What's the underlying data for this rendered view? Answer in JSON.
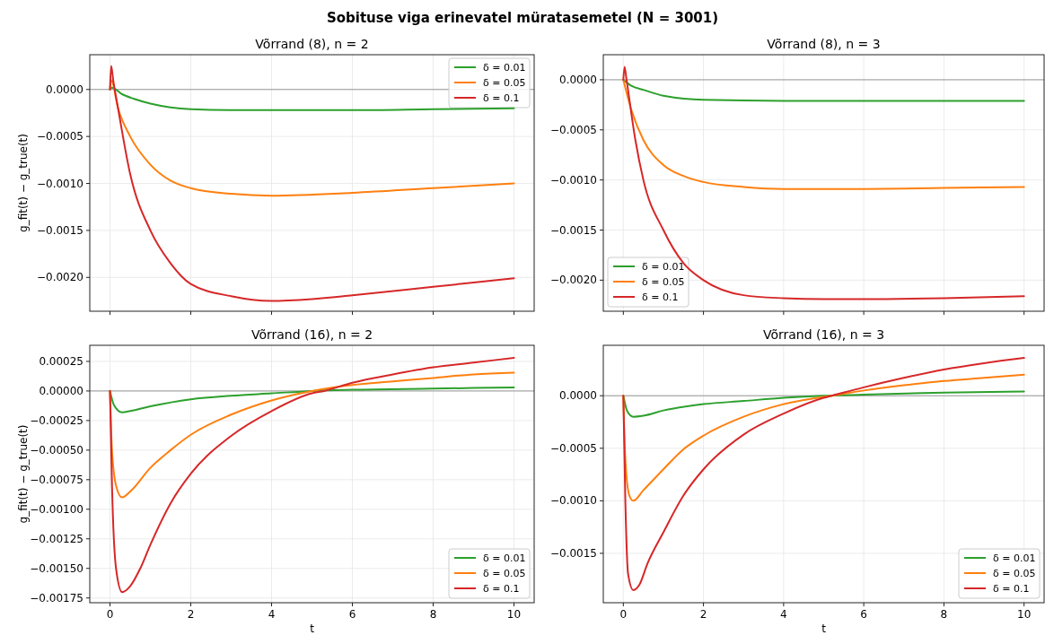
{
  "chart_data": [
    {
      "type": "line",
      "title": "Võrrand (8), n = 2",
      "annotations": [
        "Sobituse viga erinevatel müratasemetel (N = 3001)"
      ],
      "ylabel": "g_fit(t) − g_true(t)",
      "xlim": [
        -0.5,
        10.5
      ],
      "xticks": [
        0,
        2,
        4,
        6,
        8,
        10
      ],
      "ylim": [
        -0.00236,
        0.00037
      ],
      "yticks": [
        {
          "value": 0,
          "label": "0.0000"
        },
        {
          "value": -0.0005,
          "label": "−0.0005"
        },
        {
          "value": -0.001,
          "label": "−0.0010"
        },
        {
          "value": -0.0015,
          "label": "−0.0015"
        },
        {
          "value": -0.002,
          "label": "−0.0020"
        }
      ],
      "tick_labels": "y",
      "grid": true,
      "legend": "top right",
      "ref_lines": [
        {
          "axis": "y",
          "value": 0,
          "color": "#999999"
        }
      ],
      "series": [
        {
          "name": "δ = 0.01",
          "color": "#2ca02c",
          "x": [
            0,
            0.05,
            0.3,
            0.6,
            1,
            1.5,
            2,
            3,
            4,
            6,
            8,
            10
          ],
          "values": [
            0,
            2e-05,
            -5e-05,
            -0.0001,
            -0.00015,
            -0.00019,
            -0.00021,
            -0.00022,
            -0.00022,
            -0.00022,
            -0.00021,
            -0.0002
          ]
        },
        {
          "name": "δ = 0.05",
          "color": "#ff7f0e",
          "x": [
            0,
            0.03,
            0.2,
            0.5,
            1,
            1.5,
            2,
            3,
            4,
            6,
            8,
            10
          ],
          "values": [
            0,
            0.0001,
            -0.0002,
            -0.0005,
            -0.0008,
            -0.00097,
            -0.00105,
            -0.00111,
            -0.00113,
            -0.0011,
            -0.00105,
            -0.001
          ]
        },
        {
          "name": "δ = 0.1",
          "color": "#d62728",
          "x": [
            0,
            0.03,
            0.08,
            0.2,
            0.5,
            1,
            1.5,
            2,
            3,
            4,
            5,
            6,
            8,
            10
          ],
          "values": [
            0,
            0.00025,
            0.0001,
            -0.0002,
            -0.0009,
            -0.0015,
            -0.00185,
            -0.00207,
            -0.0022,
            -0.00225,
            -0.00223,
            -0.00219,
            -0.0021,
            -0.00201
          ]
        }
      ]
    },
    {
      "type": "line",
      "title": "Võrrand (8), n = 3",
      "xlim": [
        -0.5,
        10.5
      ],
      "xticks": [
        0,
        2,
        4,
        6,
        8,
        10
      ],
      "ylim": [
        -0.00231,
        0.00025
      ],
      "yticks": [
        {
          "value": 0,
          "label": "0.0000"
        },
        {
          "value": -0.0005,
          "label": "−0.0005"
        },
        {
          "value": -0.001,
          "label": "−0.0010"
        },
        {
          "value": -0.0015,
          "label": "−0.0015"
        },
        {
          "value": -0.002,
          "label": "−0.0020"
        }
      ],
      "tick_labels": "y",
      "grid": true,
      "legend": "bottom left",
      "ref_lines": [
        {
          "axis": "y",
          "value": 0,
          "color": "#999999"
        }
      ],
      "series": [
        {
          "name": "δ = 0.01",
          "color": "#2ca02c",
          "x": [
            0,
            0.2,
            0.5,
            1,
            2,
            4,
            6,
            8,
            10
          ],
          "values": [
            0,
            -6e-05,
            -0.0001,
            -0.00016,
            -0.0002,
            -0.00021,
            -0.00021,
            -0.00021,
            -0.00021
          ]
        },
        {
          "name": "δ = 0.05",
          "color": "#ff7f0e",
          "x": [
            0,
            0.2,
            0.5,
            1,
            1.5,
            2,
            3,
            4,
            6,
            8,
            10
          ],
          "values": [
            0,
            -0.0003,
            -0.0006,
            -0.00085,
            -0.00096,
            -0.00102,
            -0.00107,
            -0.00109,
            -0.00109,
            -0.00108,
            -0.00107
          ]
        },
        {
          "name": "δ = 0.1",
          "color": "#d62728",
          "x": [
            0,
            0.03,
            0.08,
            0.3,
            0.5,
            1,
            1.5,
            2,
            3,
            4,
            5,
            6,
            8,
            10
          ],
          "values": [
            0,
            0.00013,
            0,
            -0.0006,
            -0.001,
            -0.0015,
            -0.00183,
            -0.002,
            -0.00215,
            -0.00218,
            -0.00219,
            -0.00219,
            -0.00218,
            -0.00216
          ]
        }
      ]
    },
    {
      "type": "line",
      "title": "Võrrand (16), n = 2",
      "xlabel": "t",
      "ylabel": "g_fit(t) − g_true(t)",
      "xlim": [
        -0.5,
        10.5
      ],
      "xticks": [
        0,
        2,
        4,
        6,
        8,
        10
      ],
      "ylim": [
        -0.00179,
        0.000386
      ],
      "yticks": [
        {
          "value": 0.00025,
          "label": "0.00025"
        },
        {
          "value": 0,
          "label": "0.00000"
        },
        {
          "value": -0.00025,
          "label": "−0.00025"
        },
        {
          "value": -0.0005,
          "label": "−0.00050"
        },
        {
          "value": -0.00075,
          "label": "−0.00075"
        },
        {
          "value": -0.001,
          "label": "−0.00100"
        },
        {
          "value": -0.00125,
          "label": "−0.00125"
        },
        {
          "value": -0.0015,
          "label": "−0.00150"
        },
        {
          "value": -0.00175,
          "label": "−0.00175"
        }
      ],
      "grid": true,
      "legend": "bottom right",
      "ref_lines": [
        {
          "axis": "y",
          "value": 0,
          "color": "#999999"
        }
      ],
      "series": [
        {
          "name": "δ = 0.01",
          "color": "#2ca02c",
          "x": [
            0,
            0.1,
            0.3,
            0.5,
            1,
            2,
            3,
            4,
            5,
            6,
            8,
            10
          ],
          "values": [
            0,
            -0.00012,
            -0.00018,
            -0.00017,
            -0.00013,
            -7e-05,
            -4e-05,
            -2e-05,
            0,
            1e-05,
            2e-05,
            3e-05
          ]
        },
        {
          "name": "δ = 0.05",
          "color": "#ff7f0e",
          "x": [
            0,
            0.05,
            0.15,
            0.3,
            0.5,
            1,
            1.5,
            2,
            3,
            4,
            5,
            6,
            7,
            8,
            9,
            10
          ],
          "values": [
            0,
            -0.0005,
            -0.0008,
            -0.0009,
            -0.00085,
            -0.00065,
            -0.0005,
            -0.00037,
            -0.0002,
            -8e-05,
            0,
            5e-05,
            8e-05,
            0.00011,
            0.00014,
            0.000155
          ]
        },
        {
          "name": "δ = 0.1",
          "color": "#d62728",
          "x": [
            0,
            0.05,
            0.15,
            0.3,
            0.5,
            0.75,
            1,
            1.5,
            2,
            3,
            4,
            5,
            5.3,
            6,
            7,
            8,
            9,
            10
          ],
          "values": [
            0,
            -0.0008,
            -0.0015,
            -0.0017,
            -0.00165,
            -0.0015,
            -0.0013,
            -0.00095,
            -0.0007,
            -0.00038,
            -0.00017,
            -2e-05,
            0,
            7e-05,
            0.00014,
            0.0002,
            0.00024,
            0.00028
          ]
        }
      ]
    },
    {
      "type": "line",
      "title": "Võrrand (16), n = 3",
      "xlabel": "t",
      "xlim": [
        -0.5,
        10.5
      ],
      "xticks": [
        0,
        2,
        4,
        6,
        8,
        10
      ],
      "ylim": [
        -0.00197,
        0.00048
      ],
      "yticks": [
        {
          "value": 0,
          "label": "0.0000"
        },
        {
          "value": -0.0005,
          "label": "−0.0005"
        },
        {
          "value": -0.001,
          "label": "−0.0010"
        },
        {
          "value": -0.0015,
          "label": "−0.0015"
        }
      ],
      "grid": true,
      "legend": "bottom right",
      "ref_lines": [
        {
          "axis": "y",
          "value": 0,
          "color": "#999999"
        }
      ],
      "series": [
        {
          "name": "δ = 0.01",
          "color": "#2ca02c",
          "x": [
            0,
            0.1,
            0.25,
            0.5,
            1,
            2,
            3,
            4,
            5,
            6,
            8,
            10
          ],
          "values": [
            0,
            -0.00015,
            -0.0002,
            -0.00019,
            -0.00014,
            -8e-05,
            -5e-05,
            -2e-05,
            0,
            1e-05,
            3e-05,
            4e-05
          ]
        },
        {
          "name": "δ = 0.05",
          "color": "#ff7f0e",
          "x": [
            0,
            0.05,
            0.15,
            0.25,
            0.5,
            1,
            1.5,
            2,
            3,
            4,
            5,
            5.2,
            6,
            7,
            8,
            9,
            10
          ],
          "values": [
            0,
            -0.0006,
            -0.00095,
            -0.001,
            -0.0009,
            -0.0007,
            -0.00051,
            -0.00038,
            -0.0002,
            -8e-05,
            -1e-05,
            0,
            5e-05,
            0.0001,
            0.00014,
            0.00017,
            0.0002
          ]
        },
        {
          "name": "δ = 0.1",
          "color": "#d62728",
          "x": [
            0,
            0.05,
            0.12,
            0.25,
            0.4,
            0.6,
            1,
            1.5,
            2,
            3,
            4,
            5,
            5.2,
            6,
            7,
            8,
            9,
            10
          ],
          "values": [
            0,
            -0.001,
            -0.0017,
            -0.00185,
            -0.0018,
            -0.0016,
            -0.0013,
            -0.00095,
            -0.0007,
            -0.00037,
            -0.00017,
            -2e-05,
            0,
            8e-05,
            0.00017,
            0.00025,
            0.00031,
            0.00036
          ]
        }
      ]
    }
  ]
}
